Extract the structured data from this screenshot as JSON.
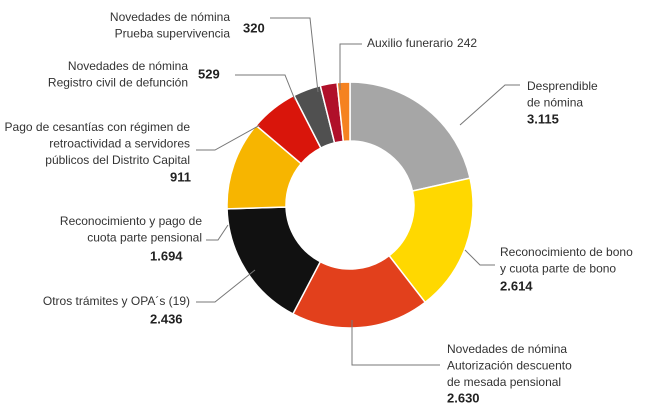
{
  "chart_data": {
    "type": "donut",
    "categories": [
      [
        "Desprendible",
        "de nómina"
      ],
      [
        "Reconocimiento de bono",
        "y cuota parte de bono"
      ],
      [
        "Novedades de nómina",
        "Autorización descuento",
        "de mesada pensional"
      ],
      [
        "Otros trámites y OPA´s (19)"
      ],
      [
        "Reconocimiento y pago de",
        "cuota parte pensional"
      ],
      [
        "Pago de cesantías con régimen de",
        "retroactividad a servidores",
        "públicos del Distrito Capital"
      ],
      [
        "Novedades de nómina",
        "Registro civil de defunción"
      ],
      [
        "Novedades de nómina",
        "Prueba supervivencia"
      ],
      [
        "Auxilio funerario"
      ]
    ],
    "values": [
      3115,
      2614,
      2630,
      2436,
      1694,
      911,
      529,
      320,
      242
    ],
    "value_labels": [
      "3.115",
      "2.614",
      "2.630",
      "2.436",
      "1.694",
      "911",
      "529",
      "320",
      "242"
    ],
    "colors": [
      "#a6a6a6",
      "#ffd800",
      "#e2401c",
      "#111111",
      "#f7b500",
      "#d9150b",
      "#505050",
      "#b0102a",
      "#f58220"
    ]
  }
}
